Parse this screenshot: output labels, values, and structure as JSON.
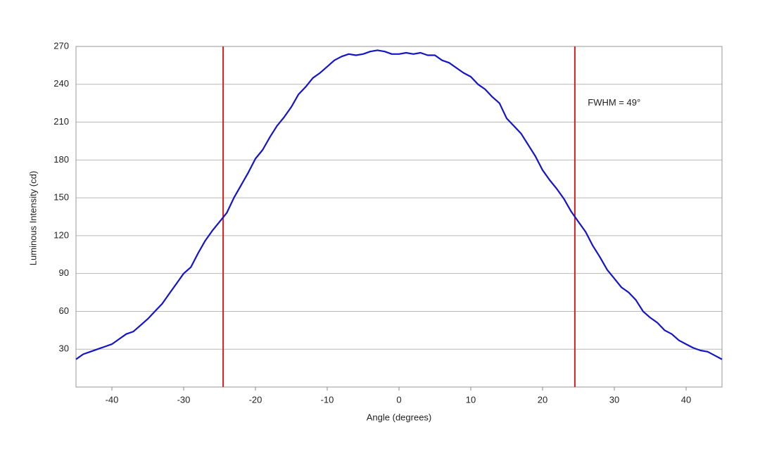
{
  "chart_data": {
    "type": "line",
    "xlabel": "Angle (degrees)",
    "ylabel": "Luminous Intensity (cd)",
    "x": [
      -45,
      -44,
      -43,
      -42,
      -41,
      -40,
      -39,
      -38,
      -37,
      -36,
      -35,
      -34,
      -33,
      -32,
      -31,
      -30,
      -29,
      -28,
      -27,
      -26,
      -25,
      -24,
      -23,
      -22,
      -21,
      -20,
      -19,
      -18,
      -17,
      -16,
      -15,
      -14,
      -13,
      -12,
      -11,
      -10,
      -9,
      -8,
      -7,
      -6,
      -5,
      -4,
      -3,
      -2,
      -1,
      0,
      1,
      2,
      3,
      4,
      5,
      6,
      7,
      8,
      9,
      10,
      11,
      12,
      13,
      14,
      15,
      16,
      17,
      18,
      19,
      20,
      21,
      22,
      23,
      24,
      25,
      26,
      27,
      28,
      29,
      30,
      31,
      32,
      33,
      34,
      35,
      36,
      37,
      38,
      39,
      40,
      41,
      42,
      43,
      44,
      45
    ],
    "series": [
      {
        "color": "#1414c8",
        "values": [
          22,
          26,
          28,
          30,
          32,
          34,
          38,
          42,
          44,
          49,
          54,
          60,
          66,
          74,
          82,
          90,
          95,
          106,
          116,
          124,
          131,
          138,
          150,
          160,
          170,
          181,
          188,
          198,
          207,
          214,
          222,
          232,
          238,
          245,
          249,
          254,
          259,
          262,
          264,
          263,
          264,
          266,
          267,
          266,
          264,
          264,
          265,
          264,
          265,
          263,
          263,
          259,
          257,
          253,
          249,
          246,
          240,
          236,
          230,
          225,
          213,
          207,
          201,
          192,
          183,
          172,
          164,
          157,
          149,
          139,
          131,
          123,
          112,
          103,
          93,
          86,
          79,
          75,
          69,
          60,
          55,
          51,
          45,
          42,
          37,
          34,
          31,
          29,
          28,
          25,
          22
        ]
      }
    ],
    "xlim": [
      -45,
      45
    ],
    "ylim": [
      0,
      270
    ],
    "xticks": [
      -40,
      -30,
      -20,
      -10,
      0,
      10,
      20,
      30,
      40
    ],
    "yticks": [
      30,
      60,
      90,
      120,
      150,
      180,
      210,
      240,
      270
    ],
    "grid": true,
    "vlines": [
      {
        "x": -24.5,
        "color": "#d42020"
      },
      {
        "x": 24.5,
        "color": "#d42020"
      }
    ],
    "annotations": [
      {
        "text": "FWHM = 49°",
        "x": 26.3,
        "y": 225
      }
    ]
  }
}
